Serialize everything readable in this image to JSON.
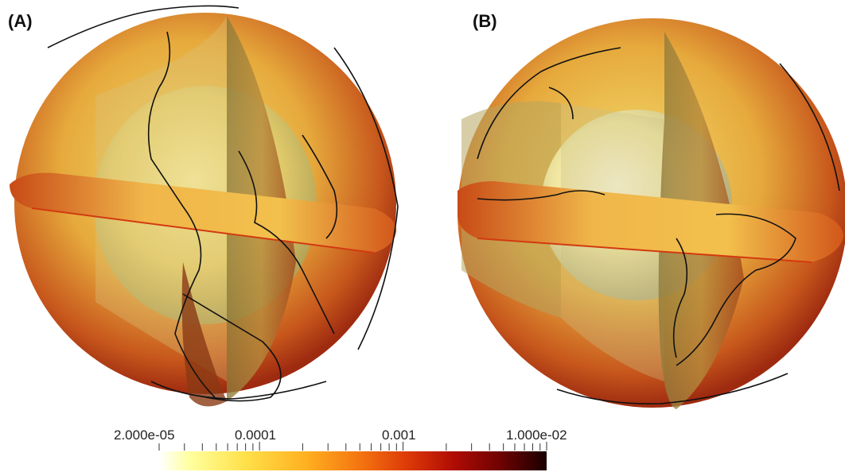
{
  "panels": {
    "a": {
      "label": "(A)"
    },
    "b": {
      "label": "(B)"
    }
  },
  "colorbar": {
    "ticks": [
      "2.000e-05",
      "0.0001",
      "0.001",
      "1.000e-02"
    ],
    "colors": [
      "#ffffff",
      "#ffff9e",
      "#ffb020",
      "#dd3a08",
      "#6e0302",
      "#1a0000"
    ]
  }
}
